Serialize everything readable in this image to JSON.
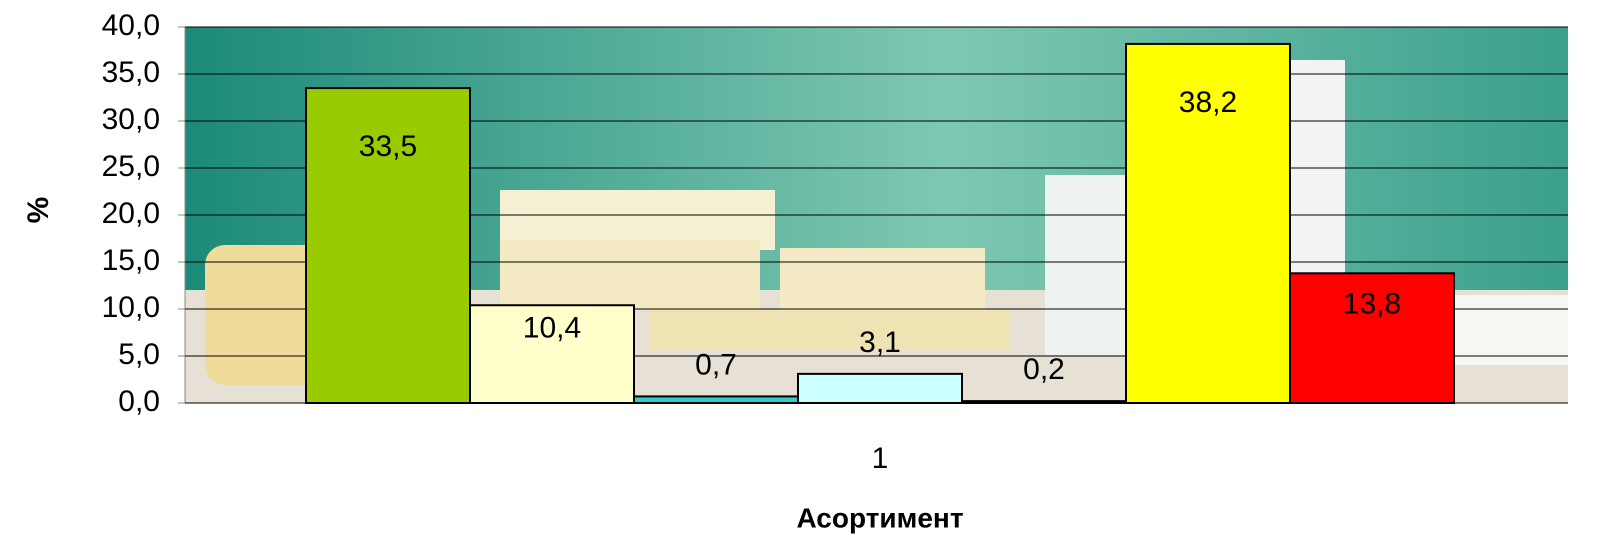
{
  "chart_data": {
    "type": "bar",
    "x_label": "Асортимент",
    "y_label": "%",
    "categories": [
      "1"
    ],
    "series": [
      {
        "color": "#99cc00",
        "values": [
          33.5
        ],
        "value_labels": [
          "33,5"
        ]
      },
      {
        "color": "#ffffcc",
        "values": [
          10.4
        ],
        "value_labels": [
          "10,4"
        ]
      },
      {
        "color": "#33cccc",
        "values": [
          0.7
        ],
        "value_labels": [
          "0,7"
        ]
      },
      {
        "color": "#ccffff",
        "values": [
          3.1
        ],
        "value_labels": [
          "3,1"
        ]
      },
      {
        "color": "#333333",
        "values": [
          0.2
        ],
        "value_labels": [
          "0,2"
        ]
      },
      {
        "color": "#ffff00",
        "values": [
          38.2
        ],
        "value_labels": [
          "38,2"
        ]
      },
      {
        "color": "#ff0000",
        "values": [
          13.8
        ],
        "value_labels": [
          "13,8"
        ]
      }
    ],
    "ylim": [
      0,
      40
    ],
    "yticks": [
      {
        "value": 0,
        "label": "0,0"
      },
      {
        "value": 5,
        "label": "5,0"
      },
      {
        "value": 10,
        "label": "10,0"
      },
      {
        "value": 15,
        "label": "15,0"
      },
      {
        "value": 20,
        "label": "20,0"
      },
      {
        "value": 25,
        "label": "25,0"
      },
      {
        "value": 30,
        "label": "30,0"
      },
      {
        "value": 35,
        "label": "35,0"
      },
      {
        "value": 40,
        "label": "40,0"
      }
    ],
    "grid": true
  }
}
